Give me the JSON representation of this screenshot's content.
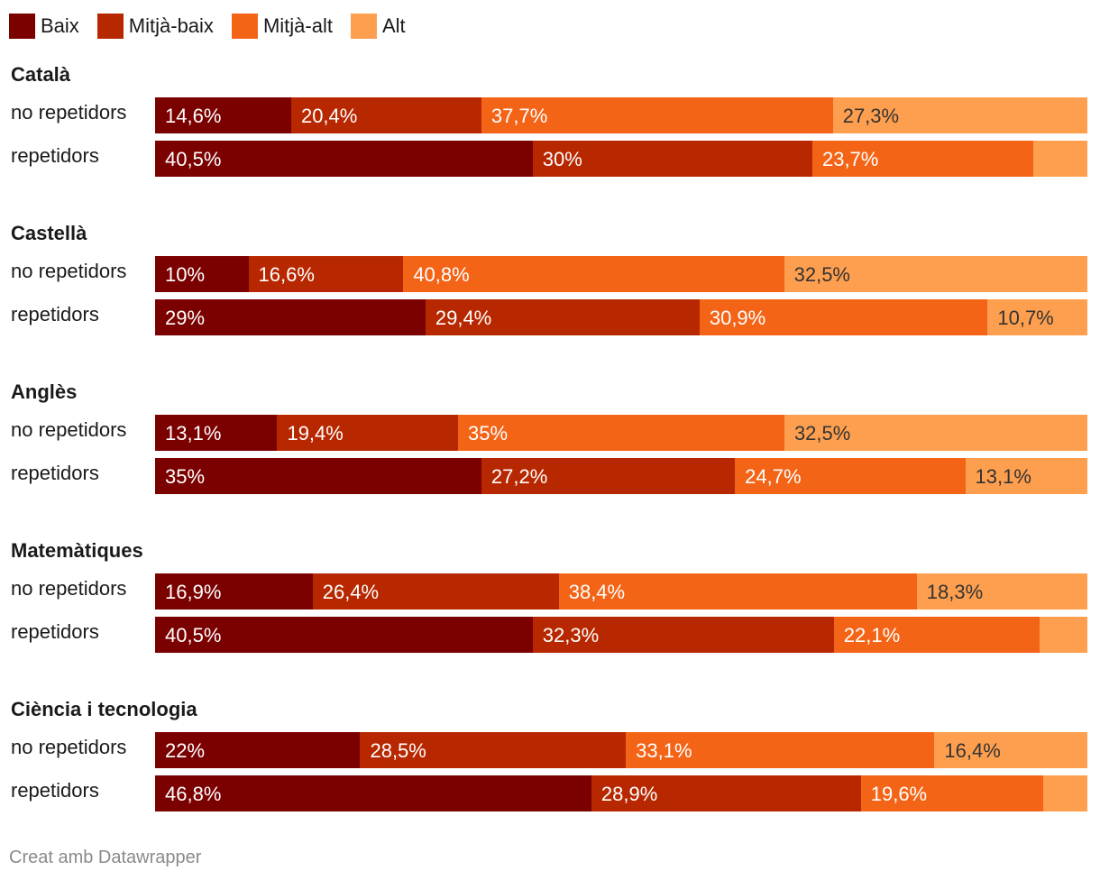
{
  "chart_data": {
    "type": "bar",
    "orientation": "horizontal",
    "stacked": true,
    "legend_position": "top-left",
    "series": [
      {
        "name": "Baix",
        "color": "#7b0000"
      },
      {
        "name": "Mitjà-baix",
        "color": "#b82800"
      },
      {
        "name": "Mitjà-alt",
        "color": "#f46417"
      },
      {
        "name": "Alt",
        "color": "#fe9f4f"
      }
    ],
    "groups": [
      {
        "title": "Català",
        "rows": [
          {
            "label": "no repetidors",
            "values": [
              14.6,
              20.4,
              37.7,
              27.3
            ],
            "labels": [
              "14,6%",
              "20,4%",
              "37,7%",
              "27,3%"
            ]
          },
          {
            "label": "repetidors",
            "values": [
              40.5,
              30,
              23.7,
              5.8
            ],
            "labels": [
              "40,5%",
              "30%",
              "23,7%",
              ""
            ]
          }
        ]
      },
      {
        "title": "Castellà",
        "rows": [
          {
            "label": "no repetidors",
            "values": [
              10,
              16.6,
              40.8,
              32.5
            ],
            "labels": [
              "10%",
              "16,6%",
              "40,8%",
              "32,5%"
            ]
          },
          {
            "label": "repetidors",
            "values": [
              29,
              29.4,
              30.9,
              10.7
            ],
            "labels": [
              "29%",
              "29,4%",
              "30,9%",
              "10,7%"
            ]
          }
        ]
      },
      {
        "title": "Anglès",
        "rows": [
          {
            "label": "no repetidors",
            "values": [
              13.1,
              19.4,
              35,
              32.5
            ],
            "labels": [
              "13,1%",
              "19,4%",
              "35%",
              "32,5%"
            ]
          },
          {
            "label": "repetidors",
            "values": [
              35,
              27.2,
              24.7,
              13.1
            ],
            "labels": [
              "35%",
              "27,2%",
              "24,7%",
              "13,1%"
            ]
          }
        ]
      },
      {
        "title": "Matemàtiques",
        "rows": [
          {
            "label": "no repetidors",
            "values": [
              16.9,
              26.4,
              38.4,
              18.3
            ],
            "labels": [
              "16,9%",
              "26,4%",
              "38,4%",
              "18,3%"
            ]
          },
          {
            "label": "repetidors",
            "values": [
              40.5,
              32.3,
              22.1,
              5.1
            ],
            "labels": [
              "40,5%",
              "32,3%",
              "22,1%",
              ""
            ]
          }
        ]
      },
      {
        "title": "Ciència i tecnologia",
        "rows": [
          {
            "label": "no repetidors",
            "values": [
              22,
              28.5,
              33.1,
              16.4
            ],
            "labels": [
              "22%",
              "28,5%",
              "33,1%",
              "16,4%"
            ]
          },
          {
            "label": "repetidors",
            "values": [
              46.8,
              28.9,
              19.6,
              4.7
            ],
            "labels": [
              "46,8%",
              "28,9%",
              "19,6%",
              ""
            ]
          }
        ]
      }
    ],
    "label_colors": {
      "light": "#ffffff",
      "dark": "#333333"
    }
  },
  "footer": {
    "credit": "Creat amb Datawrapper"
  }
}
